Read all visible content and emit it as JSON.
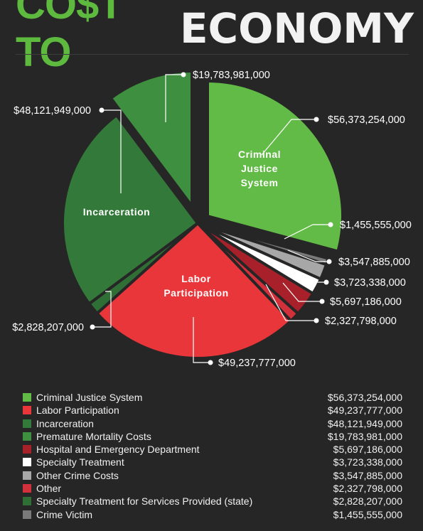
{
  "header": {
    "title_part1": "CO$T TO",
    "title_part2": "ECONOMY"
  },
  "chart_data": {
    "type": "pie",
    "labels_inside": [
      "Criminal Justice System",
      "Labor Participation",
      "Incarceration"
    ],
    "inside_text": {
      "criminal_justice": [
        "Criminal",
        "Justice",
        "System"
      ],
      "labor": [
        "Labor",
        "Participation"
      ],
      "incarceration": [
        "Incarceration"
      ]
    },
    "slices": [
      {
        "name": "Criminal Justice System",
        "value": 56373254000,
        "label": "$56,373,254,000",
        "color": "#62bb46"
      },
      {
        "name": "Crime Victim",
        "value": 1455555000,
        "label": "$1,455,555,000",
        "color": "#7a7a7a"
      },
      {
        "name": "Other Crime Costs",
        "value": 3547885000,
        "label": "$3,547,885,000",
        "color": "#a7a7a7"
      },
      {
        "name": "Specialty Treatment",
        "value": 3723338000,
        "label": "$3,723,338,000",
        "color": "#ffffff"
      },
      {
        "name": "Hospital and Emergency Department",
        "value": 5697186000,
        "label": "$5,697,186,000",
        "color": "#a8212a"
      },
      {
        "name": "Other",
        "value": 2327798000,
        "label": "$2,327,798,000",
        "color": "#d2303a"
      },
      {
        "name": "Labor Participation",
        "value": 49237777000,
        "label": "$49,237,777,000",
        "color": "#e8363a"
      },
      {
        "name": "Specialty Treatment for Services Provided (state)",
        "value": 2828207000,
        "label": "$2,828,207,000",
        "color": "#2f6e34"
      },
      {
        "name": "Incarceration",
        "value": 48121949000,
        "label": "$48,121,949,000",
        "color": "#337a3a"
      },
      {
        "name": "Premature Mortality Costs",
        "value": 19783981000,
        "label": "$19,783,981,000",
        "color": "#3f8f40"
      }
    ]
  },
  "legend": [
    {
      "label": "Criminal Justice System",
      "value": "$56,373,254,000",
      "color": "#62bb46"
    },
    {
      "label": "Labor Participation",
      "value": "$49,237,777,000",
      "color": "#e8363a"
    },
    {
      "label": "Incarceration",
      "value": "$48,121,949,000",
      "color": "#337a3a"
    },
    {
      "label": "Premature Mortality Costs",
      "value": "$19,783,981,000",
      "color": "#3f8f40"
    },
    {
      "label": "Hospital and Emergency Department",
      "value": "$5,697,186,000",
      "color": "#a8212a"
    },
    {
      "label": "Specialty Treatment",
      "value": "$3,723,338,000",
      "color": "#ffffff"
    },
    {
      "label": "Other Crime Costs",
      "value": "$3,547,885,000",
      "color": "#a7a7a7"
    },
    {
      "label": "Other",
      "value": "$2,327,798,000",
      "color": "#d2303a"
    },
    {
      "label": "Specialty Treatment for Services Provided (state)",
      "value": "$2,828,207,000",
      "color": "#2f6e34"
    },
    {
      "label": "Crime Victim",
      "value": "$1,455,555,000",
      "color": "#7a7a7a"
    }
  ]
}
